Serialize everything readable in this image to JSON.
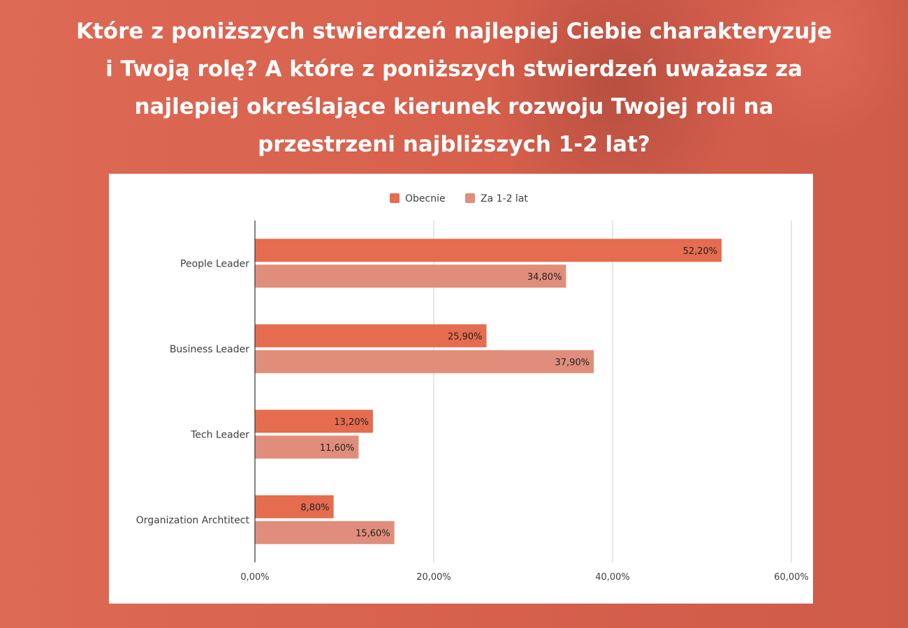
{
  "title": "Które z poniższych stwierdzeń najlepiej Ciebie charakteryzuje i Twoją rolę? A które z poniższych stwierdzeń uważasz za najlepiej określające kierunek rozwoju Twojej roli na przestrzeni najbliższych 1-2 lat?",
  "colors": {
    "background": "#d9614d",
    "series_obecnie": "#e56c4f",
    "series_za": "#e08e7b",
    "grid": "#cccccc",
    "axis": "#333333"
  },
  "chart_data": {
    "type": "bar",
    "orientation": "horizontal",
    "categories": [
      "People Leader",
      "Business Leader",
      "Tech Leader",
      "Organization Archtitect"
    ],
    "series": [
      {
        "name": "Obecnie",
        "values": [
          52.2,
          25.9,
          13.2,
          8.8
        ],
        "labels": [
          "52,20%",
          "25,90%",
          "13,20%",
          "8,80%"
        ]
      },
      {
        "name": "Za 1-2 lat",
        "values": [
          34.8,
          37.9,
          11.6,
          15.6
        ],
        "labels": [
          "34,80%",
          "37,90%",
          "11,60%",
          "15,60%"
        ]
      }
    ],
    "xlim": [
      0,
      60
    ],
    "xticks": [
      0,
      20,
      40,
      60
    ],
    "xtick_labels": [
      "0,00%",
      "20,00%",
      "40,00%",
      "60,00%"
    ],
    "grid": true,
    "legend_position": "top-center",
    "xlabel": "",
    "ylabel": ""
  }
}
